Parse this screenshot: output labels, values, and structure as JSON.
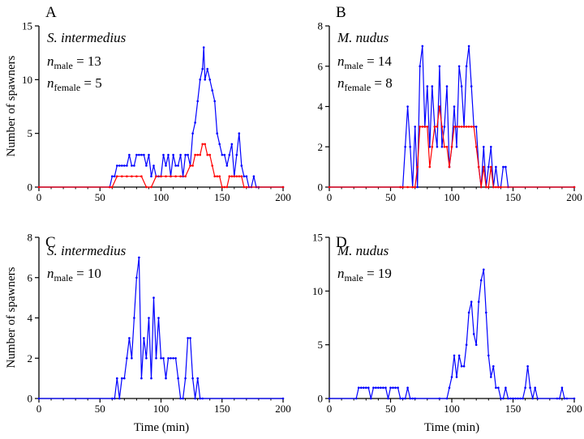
{
  "y_axis_title": "Number of spawners",
  "x_axis_title": "Time (min)",
  "colors": {
    "male": "#0000ff",
    "female": "#ff0000",
    "axis": "#000000"
  },
  "chart_data": [
    {
      "type": "line",
      "panel": "A",
      "species": "S. intermedius",
      "annotations": [
        {
          "var": "n",
          "sub": "male",
          "eq": " = 13"
        },
        {
          "var": "n",
          "sub": "female",
          "eq": " = 5"
        }
      ],
      "xlim": [
        0,
        200
      ],
      "ylim": [
        0,
        15
      ],
      "x_ticks": [
        0,
        50,
        100,
        150,
        200
      ],
      "y_ticks": [
        0,
        5,
        10,
        15
      ],
      "series": [
        {
          "key": "male",
          "x": [
            0,
            58,
            60,
            62,
            64,
            66,
            68,
            70,
            72,
            74,
            76,
            78,
            80,
            82,
            84,
            86,
            88,
            90,
            92,
            94,
            96,
            98,
            100,
            102,
            104,
            106,
            108,
            110,
            112,
            114,
            116,
            118,
            120,
            122,
            124,
            126,
            128,
            130,
            132,
            134,
            135,
            136,
            138,
            140,
            142,
            144,
            146,
            148,
            150,
            152,
            154,
            156,
            158,
            160,
            162,
            164,
            166,
            168,
            170,
            172,
            174,
            176,
            178,
            180,
            200
          ],
          "y": [
            0,
            0,
            1,
            1,
            2,
            2,
            2,
            2,
            2,
            3,
            2,
            2,
            3,
            3,
            3,
            3,
            2,
            3,
            1,
            2,
            1,
            1,
            1,
            3,
            2,
            3,
            1,
            3,
            2,
            2,
            3,
            1,
            3,
            3,
            2,
            5,
            6,
            8,
            10,
            11,
            13,
            10,
            11,
            10,
            9,
            8,
            5,
            4,
            3,
            3,
            2,
            3,
            4,
            1,
            3,
            5,
            2,
            1,
            1,
            0,
            0,
            1,
            0,
            0,
            0
          ]
        },
        {
          "key": "female",
          "x": [
            0,
            58,
            60,
            64,
            68,
            72,
            76,
            80,
            84,
            88,
            92,
            96,
            100,
            104,
            108,
            112,
            116,
            120,
            124,
            126,
            128,
            130,
            132,
            134,
            136,
            138,
            140,
            142,
            144,
            146,
            148,
            150,
            152,
            154,
            156,
            158,
            160,
            162,
            164,
            166,
            168,
            170,
            200
          ],
          "y": [
            0,
            0,
            0,
            1,
            1,
            1,
            1,
            1,
            1,
            0,
            0,
            1,
            1,
            1,
            1,
            1,
            1,
            1,
            2,
            2,
            3,
            3,
            3,
            4,
            4,
            3,
            3,
            2,
            1,
            1,
            1,
            0,
            0,
            0,
            1,
            1,
            1,
            1,
            1,
            1,
            0,
            0,
            0
          ]
        }
      ]
    },
    {
      "type": "line",
      "panel": "B",
      "species": "M. nudus",
      "annotations": [
        {
          "var": "n",
          "sub": "male",
          "eq": " = 14"
        },
        {
          "var": "n",
          "sub": "female",
          "eq": " = 8"
        }
      ],
      "xlim": [
        0,
        200
      ],
      "ylim": [
        0,
        8
      ],
      "x_ticks": [
        0,
        50,
        100,
        150,
        200
      ],
      "y_ticks": [
        0,
        2,
        4,
        6,
        8
      ],
      "series": [
        {
          "key": "male",
          "x": [
            0,
            58,
            60,
            62,
            64,
            66,
            68,
            70,
            72,
            74,
            76,
            78,
            80,
            82,
            84,
            86,
            88,
            90,
            92,
            94,
            96,
            98,
            100,
            102,
            104,
            106,
            108,
            110,
            112,
            114,
            116,
            118,
            120,
            122,
            124,
            126,
            128,
            130,
            132,
            134,
            136,
            138,
            140,
            142,
            144,
            146,
            200
          ],
          "y": [
            0,
            0,
            0,
            2,
            4,
            2,
            0,
            3,
            0,
            6,
            7,
            3,
            5,
            2,
            5,
            3,
            2,
            6,
            2,
            3,
            5,
            1,
            2,
            4,
            2,
            6,
            5,
            3,
            6,
            7,
            5,
            3,
            3,
            1,
            0,
            2,
            0,
            1,
            2,
            0,
            1,
            0,
            0,
            1,
            1,
            0,
            0
          ]
        },
        {
          "key": "female",
          "x": [
            0,
            58,
            60,
            64,
            68,
            70,
            72,
            74,
            76,
            78,
            80,
            82,
            84,
            86,
            88,
            90,
            92,
            94,
            96,
            98,
            100,
            102,
            104,
            106,
            108,
            110,
            112,
            114,
            116,
            118,
            120,
            122,
            124,
            126,
            128,
            130,
            132,
            134,
            136,
            138,
            140,
            200
          ],
          "y": [
            0,
            0,
            0,
            0,
            0,
            0,
            1,
            3,
            3,
            3,
            3,
            1,
            2,
            3,
            3,
            4,
            3,
            2,
            2,
            1,
            2,
            3,
            3,
            3,
            3,
            3,
            3,
            3,
            3,
            3,
            2,
            1,
            0,
            1,
            0,
            0,
            1,
            0,
            0,
            0,
            0,
            0
          ]
        }
      ]
    },
    {
      "type": "line",
      "panel": "C",
      "species": "S. intermedius",
      "annotations": [
        {
          "var": "n",
          "sub": "male",
          "eq": " = 10"
        }
      ],
      "xlim": [
        0,
        200
      ],
      "ylim": [
        0,
        8
      ],
      "x_ticks": [
        0,
        50,
        100,
        150,
        200
      ],
      "y_ticks": [
        0,
        2,
        4,
        6,
        8
      ],
      "series": [
        {
          "key": "male",
          "x": [
            0,
            60,
            62,
            64,
            66,
            68,
            70,
            72,
            74,
            76,
            78,
            80,
            82,
            84,
            86,
            88,
            90,
            92,
            94,
            96,
            98,
            100,
            102,
            104,
            106,
            108,
            110,
            112,
            114,
            116,
            118,
            120,
            122,
            124,
            126,
            128,
            130,
            132,
            134,
            200
          ],
          "y": [
            0,
            0,
            0,
            1,
            0,
            1,
            1,
            2,
            3,
            2,
            4,
            6,
            7,
            1,
            3,
            2,
            4,
            1,
            5,
            2,
            4,
            2,
            2,
            1,
            2,
            2,
            2,
            2,
            1,
            0,
            0,
            1,
            3,
            3,
            1,
            0,
            1,
            0,
            0,
            0
          ]
        }
      ]
    },
    {
      "type": "line",
      "panel": "D",
      "species": "M. nudus",
      "annotations": [
        {
          "var": "n",
          "sub": "male",
          "eq": " = 19"
        }
      ],
      "xlim": [
        0,
        200
      ],
      "ylim": [
        0,
        15
      ],
      "x_ticks": [
        0,
        50,
        100,
        150,
        200
      ],
      "y_ticks": [
        0,
        5,
        10,
        15
      ],
      "series": [
        {
          "key": "male",
          "x": [
            0,
            22,
            24,
            26,
            28,
            30,
            32,
            34,
            36,
            38,
            40,
            42,
            44,
            46,
            48,
            50,
            52,
            54,
            56,
            58,
            60,
            62,
            64,
            66,
            68,
            70,
            90,
            96,
            98,
            100,
            102,
            104,
            106,
            108,
            110,
            112,
            114,
            116,
            118,
            120,
            122,
            124,
            126,
            128,
            130,
            132,
            134,
            136,
            138,
            140,
            142,
            144,
            146,
            148,
            150,
            152,
            154,
            156,
            158,
            160,
            162,
            164,
            166,
            168,
            170,
            186,
            188,
            190,
            192,
            194,
            200
          ],
          "y": [
            0,
            0,
            1,
            1,
            1,
            1,
            1,
            0,
            1,
            1,
            1,
            1,
            1,
            1,
            0,
            1,
            1,
            1,
            1,
            0,
            0,
            0,
            1,
            0,
            0,
            0,
            0,
            0,
            1,
            2,
            4,
            2,
            4,
            3,
            3,
            5,
            8,
            9,
            6,
            5,
            9,
            11,
            12,
            8,
            4,
            2,
            3,
            1,
            1,
            0,
            0,
            1,
            0,
            0,
            0,
            0,
            0,
            0,
            0,
            1,
            3,
            1,
            0,
            1,
            0,
            0,
            0,
            1,
            0,
            0,
            0
          ]
        }
      ]
    }
  ]
}
